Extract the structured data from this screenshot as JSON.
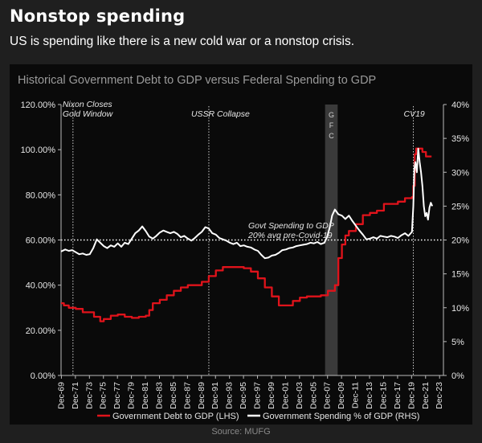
{
  "header": {
    "title": "Nonstop spending",
    "subtitle": "US is spending like there is a new cold war or a nonstop crisis."
  },
  "footer": {
    "source": "Source: MUFG"
  },
  "colors": {
    "debt": "#e0131b",
    "spending": "#ffffff",
    "panel": "#0a0a0a",
    "page": "#1f1f1f",
    "gfc_band": "#3a3a3a"
  },
  "chart_data": {
    "type": "line",
    "title": "Historical Government Debt to GDP versus Federal Spending to GDP",
    "xlabel": "",
    "ylabel": "",
    "x_ticks": [
      "Dec-69",
      "Dec-71",
      "Dec-73",
      "Dec-75",
      "Dec-77",
      "Dec-79",
      "Dec-81",
      "Dec-83",
      "Dec-85",
      "Dec-87",
      "Dec-89",
      "Dec-91",
      "Dec-93",
      "Dec-95",
      "Dec-97",
      "Dec-99",
      "Dec-01",
      "Dec-03",
      "Dec-05",
      "Dec-07",
      "Dec-09",
      "Dec-11",
      "Dec-13",
      "Dec-15",
      "Dec-17",
      "Dec-19",
      "Dec-21",
      "Dec-23"
    ],
    "xlim": [
      1969.9,
      2024.5
    ],
    "y_left": {
      "ticks": [
        "0.00%",
        "20.00%",
        "40.00%",
        "60.00%",
        "80.00%",
        "100.00%",
        "120.00%"
      ],
      "lim": [
        0,
        120
      ]
    },
    "y_right": {
      "ticks": [
        "0%",
        "5%",
        "10%",
        "15%",
        "20%",
        "25%",
        "30%",
        "35%",
        "40%"
      ],
      "lim": [
        0,
        40
      ]
    },
    "legend": {
      "position": "bottom",
      "entries": [
        "Government Debt to GDP (LHS)",
        "Government Spending % of GDP (RHS)"
      ]
    },
    "annotations": {
      "nixon": {
        "lines": [
          "Nixon Closes",
          "Gold Window"
        ],
        "x": 1971.6
      },
      "ussr": {
        "text": "USSR Collapse",
        "x": 1991.0
      },
      "gfc": {
        "letters": [
          "G",
          "F",
          "C"
        ],
        "x_start": 2007.6,
        "x_end": 2009.4
      },
      "cv19": {
        "text": "CV19",
        "x": 2020.2
      },
      "avg": {
        "lines": [
          "Govt Spending to GDP",
          "20% avg pre-Covid-19"
        ],
        "value": 20
      }
    },
    "series": [
      {
        "name": "Government Debt to GDP (LHS)",
        "axis": "left",
        "step": true,
        "points": [
          [
            1969.9,
            32
          ],
          [
            1970.3,
            31
          ],
          [
            1971,
            30
          ],
          [
            1972,
            29.5
          ],
          [
            1973,
            28
          ],
          [
            1974.6,
            26
          ],
          [
            1975.5,
            24
          ],
          [
            1976,
            25
          ],
          [
            1977,
            26.5
          ],
          [
            1978,
            27
          ],
          [
            1979,
            26
          ],
          [
            1980,
            25.5
          ],
          [
            1981,
            26
          ],
          [
            1982,
            26.5
          ],
          [
            1982.5,
            29
          ],
          [
            1983,
            32
          ],
          [
            1984,
            33.5
          ],
          [
            1985,
            35.5
          ],
          [
            1986,
            37.5
          ],
          [
            1987,
            39
          ],
          [
            1988,
            40
          ],
          [
            1989,
            40
          ],
          [
            1990,
            41.5
          ],
          [
            1991,
            44
          ],
          [
            1992,
            46.5
          ],
          [
            1993,
            48
          ],
          [
            1994,
            48
          ],
          [
            1995,
            48
          ],
          [
            1996,
            47.5
          ],
          [
            1997,
            46
          ],
          [
            1998,
            43
          ],
          [
            1999,
            39
          ],
          [
            2000,
            35
          ],
          [
            2001,
            31
          ],
          [
            2002,
            31
          ],
          [
            2003,
            33
          ],
          [
            2004,
            34.5
          ],
          [
            2005,
            35
          ],
          [
            2006,
            35
          ],
          [
            2007,
            35.5
          ],
          [
            2008,
            37.5
          ],
          [
            2009,
            40
          ],
          [
            2009.5,
            52
          ],
          [
            2010,
            58
          ],
          [
            2010.5,
            62
          ],
          [
            2011,
            64
          ],
          [
            2012,
            67
          ],
          [
            2013,
            71
          ],
          [
            2014,
            72
          ],
          [
            2015,
            73
          ],
          [
            2016,
            76
          ],
          [
            2017,
            76
          ],
          [
            2018,
            77
          ],
          [
            2019,
            78.5
          ],
          [
            2020,
            79
          ],
          [
            2020.2,
            84
          ],
          [
            2020.4,
            98
          ],
          [
            2020.6,
            100.5
          ],
          [
            2021.5,
            99
          ],
          [
            2022,
            97
          ],
          [
            2022.8,
            97
          ]
        ]
      },
      {
        "name": "Government Spending % of GDP (RHS)",
        "axis": "right",
        "step": false,
        "points": [
          [
            1969.9,
            18.3
          ],
          [
            1970.5,
            18.6
          ],
          [
            1971,
            18.4
          ],
          [
            1971.5,
            18.5
          ],
          [
            1972,
            18.2
          ],
          [
            1972.5,
            17.9
          ],
          [
            1973,
            18
          ],
          [
            1973.5,
            17.8
          ],
          [
            1974,
            17.9
          ],
          [
            1974.5,
            18.8
          ],
          [
            1975,
            20.1
          ],
          [
            1975.5,
            19.6
          ],
          [
            1976,
            19.1
          ],
          [
            1976.5,
            18.8
          ],
          [
            1977,
            19.2
          ],
          [
            1977.5,
            19
          ],
          [
            1978,
            19.5
          ],
          [
            1978.5,
            19
          ],
          [
            1979,
            19.6
          ],
          [
            1979.5,
            19.4
          ],
          [
            1980,
            20.2
          ],
          [
            1980.5,
            21
          ],
          [
            1981,
            21.4
          ],
          [
            1981.5,
            22
          ],
          [
            1982,
            21.3
          ],
          [
            1982.5,
            20.5
          ],
          [
            1983,
            20.2
          ],
          [
            1983.5,
            20.6
          ],
          [
            1984,
            21.1
          ],
          [
            1984.5,
            21.4
          ],
          [
            1985,
            21.2
          ],
          [
            1985.5,
            21
          ],
          [
            1986,
            21.2
          ],
          [
            1986.5,
            20.9
          ],
          [
            1987,
            20.4
          ],
          [
            1987.5,
            20.6
          ],
          [
            1988,
            20.2
          ],
          [
            1988.5,
            19.9
          ],
          [
            1989,
            20.3
          ],
          [
            1989.5,
            20.8
          ],
          [
            1990,
            21.2
          ],
          [
            1990.5,
            21.9
          ],
          [
            1991,
            21.7
          ],
          [
            1991.5,
            21
          ],
          [
            1992,
            20.8
          ],
          [
            1992.5,
            20.3
          ],
          [
            1993,
            20.1
          ],
          [
            1993.5,
            19.9
          ],
          [
            1994,
            19.6
          ],
          [
            1994.5,
            19.4
          ],
          [
            1995,
            19.6
          ],
          [
            1995.5,
            19.1
          ],
          [
            1996,
            19.2
          ],
          [
            1996.5,
            19
          ],
          [
            1997,
            18.9
          ],
          [
            1997.5,
            18.6
          ],
          [
            1998,
            18.4
          ],
          [
            1998.5,
            17.8
          ],
          [
            1999,
            17.3
          ],
          [
            1999.5,
            17.4
          ],
          [
            2000,
            17.7
          ],
          [
            2000.5,
            17.8
          ],
          [
            2001,
            18.1
          ],
          [
            2001.5,
            18.5
          ],
          [
            2002,
            18.6
          ],
          [
            2002.5,
            18.8
          ],
          [
            2003,
            18.9
          ],
          [
            2003.5,
            19.1
          ],
          [
            2004,
            19.2
          ],
          [
            2004.5,
            19.3
          ],
          [
            2005,
            19.4
          ],
          [
            2005.5,
            19.6
          ],
          [
            2006,
            19.5
          ],
          [
            2006.5,
            19.7
          ],
          [
            2007,
            19.4
          ],
          [
            2007.5,
            19.6
          ],
          [
            2007.9,
            20.5
          ],
          [
            2008.3,
            22
          ],
          [
            2008.6,
            23.6
          ],
          [
            2009,
            24.5
          ],
          [
            2009.5,
            23.8
          ],
          [
            2010,
            23.6
          ],
          [
            2010.5,
            23.1
          ],
          [
            2011,
            23.6
          ],
          [
            2011.5,
            22.8
          ],
          [
            2012,
            22.1
          ],
          [
            2012.5,
            21.4
          ],
          [
            2013,
            20.8
          ],
          [
            2013.5,
            20.1
          ],
          [
            2014,
            20.2
          ],
          [
            2014.5,
            20.4
          ],
          [
            2015,
            20.2
          ],
          [
            2015.5,
            20.6
          ],
          [
            2016,
            20.5
          ],
          [
            2016.5,
            20.4
          ],
          [
            2017,
            20.6
          ],
          [
            2017.5,
            20.5
          ],
          [
            2018,
            20.3
          ],
          [
            2018.5,
            20.7
          ],
          [
            2019,
            21
          ],
          [
            2019.5,
            20.6
          ],
          [
            2020,
            21.2
          ],
          [
            2020.2,
            25
          ],
          [
            2020.35,
            30.5
          ],
          [
            2020.5,
            31.5
          ],
          [
            2020.7,
            30
          ],
          [
            2020.9,
            33.5
          ],
          [
            2021.1,
            31.5
          ],
          [
            2021.3,
            30
          ],
          [
            2021.5,
            28
          ],
          [
            2021.7,
            25
          ],
          [
            2021.9,
            23.5
          ],
          [
            2022.1,
            24
          ],
          [
            2022.3,
            23
          ],
          [
            2022.5,
            24.8
          ],
          [
            2022.7,
            25.5
          ],
          [
            2022.9,
            25
          ]
        ]
      }
    ]
  }
}
